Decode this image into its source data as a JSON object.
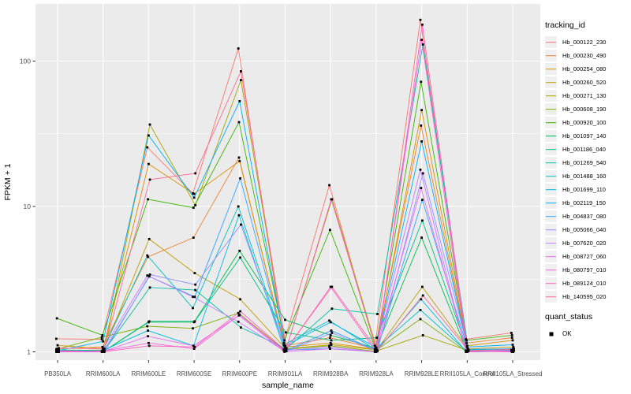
{
  "chart_data": {
    "type": "line",
    "title": "",
    "xlabel": "sample_name",
    "ylabel": "FPKM + 1",
    "y_scale": "log10",
    "yticks": [
      "1",
      "10",
      "100"
    ],
    "ytick_values": [
      1,
      10,
      100
    ],
    "y_minor_gridline_values": [
      3.1623,
      31.623
    ],
    "ylim_approx": [
      0.88,
      245
    ],
    "panel_bg": "#EBEBEB",
    "gridline_color": "#FFFFFF",
    "marker": "black-square",
    "legend_position": "right",
    "legend_title": "tracking_id",
    "legend2_title": "quant_status",
    "legend2_items": [
      {
        "label": "OK",
        "marker": "black-square"
      }
    ],
    "x_categories": [
      "PB350LA",
      "RRIM600LA",
      "RRIM600LE",
      "RRIM600SE",
      "RRIM600PE",
      "RRIM901LA",
      "RRIM928BA",
      "RRIM928LA",
      "RRIM928LE",
      "RRII105LA_Control",
      "RRII105LA_Stressed"
    ],
    "series": [
      {
        "name": "Hb_000122_230",
        "color": "#F8766D",
        "values": [
          1.23,
          1.22,
          25.5,
          12.3,
          122,
          1.15,
          14.0,
          1.1,
          192,
          1.22,
          1.35
        ]
      },
      {
        "name": "Hb_000230_490",
        "color": "#EA8331",
        "values": [
          1.05,
          1.08,
          4.5,
          6.1,
          21.7,
          1.1,
          1.25,
          1.05,
          36,
          1.15,
          1.25
        ]
      },
      {
        "name": "Hb_000254_080",
        "color": "#D89000",
        "values": [
          1.11,
          1.05,
          19.6,
          12.2,
          20.5,
          1.08,
          1.15,
          1.04,
          46,
          1.1,
          1.2
        ]
      },
      {
        "name": "Hb_000260_520",
        "color": "#C09B00",
        "values": [
          1.02,
          1.03,
          5.97,
          3.48,
          2.3,
          1.05,
          1.12,
          1.03,
          2.8,
          1.05,
          1.08
        ]
      },
      {
        "name": "Hb_000271_130",
        "color": "#A3A500",
        "values": [
          1.0,
          1.02,
          36.6,
          10.2,
          74,
          1.06,
          11.2,
          1.02,
          1.3,
          1.02,
          1.05
        ]
      },
      {
        "name": "Hb_000608_190",
        "color": "#7CAE00",
        "values": [
          1.04,
          1.26,
          1.5,
          1.45,
          1.85,
          1.04,
          1.1,
          1.01,
          1.68,
          1.01,
          1.03
        ]
      },
      {
        "name": "Hb_000920_100",
        "color": "#39B600",
        "values": [
          1.7,
          1.3,
          11.2,
          9.8,
          38,
          1.2,
          6.9,
          1.05,
          72,
          1.2,
          1.3
        ]
      },
      {
        "name": "Hb_001097_140",
        "color": "#00BB4E",
        "values": [
          1.01,
          1.0,
          1.6,
          1.6,
          4.95,
          1.66,
          1.3,
          1.06,
          6.1,
          1.0,
          1.02
        ]
      },
      {
        "name": "Hb_001186_040",
        "color": "#00BF7D",
        "values": [
          1.0,
          1.01,
          1.62,
          1.62,
          4.45,
          1.36,
          1.2,
          1.25,
          8.0,
          1.01,
          1.02
        ]
      },
      {
        "name": "Hb_001269_540",
        "color": "#00C1A3",
        "values": [
          1.03,
          1.02,
          2.77,
          2.66,
          1.47,
          1.05,
          1.98,
          1.82,
          130,
          1.03,
          1.04
        ]
      },
      {
        "name": "Hb_001488_160",
        "color": "#00BFC4",
        "values": [
          1.01,
          1.0,
          4.6,
          2.0,
          10.0,
          1.12,
          1.64,
          1.04,
          1.94,
          1.02,
          1.03
        ]
      },
      {
        "name": "Hb_001699_110",
        "color": "#00BAE0",
        "values": [
          1.0,
          1.02,
          1.4,
          1.1,
          8.7,
          1.03,
          1.05,
          1.0,
          2.3,
          1.0,
          1.01
        ]
      },
      {
        "name": "Hb_002119_150",
        "color": "#00B0F6",
        "values": [
          1.02,
          1.18,
          30.8,
          11.5,
          53,
          1.1,
          1.6,
          1.07,
          28,
          1.08,
          1.12
        ]
      },
      {
        "name": "Hb_004837_080",
        "color": "#35A2FF",
        "values": [
          1.01,
          1.01,
          3.3,
          2.39,
          15.6,
          1.02,
          1.4,
          1.02,
          11.1,
          1.04,
          1.05
        ]
      },
      {
        "name": "Hb_005066_040",
        "color": "#9590FF",
        "values": [
          1.0,
          1.0,
          3.4,
          2.9,
          7.5,
          1.01,
          1.35,
          1.01,
          16.9,
          1.02,
          1.02
        ]
      },
      {
        "name": "Hb_007620_020",
        "color": "#C77CFF",
        "values": [
          1.0,
          1.01,
          3.35,
          2.39,
          1.61,
          1.02,
          1.08,
          1.0,
          17.9,
          1.0,
          1.01
        ]
      },
      {
        "name": "Hb_008727_060",
        "color": "#E76BF3",
        "values": [
          1.0,
          1.0,
          1.28,
          1.1,
          1.78,
          1.0,
          1.05,
          1.0,
          13.4,
          1.01,
          1.0
        ]
      },
      {
        "name": "Hb_080797_010",
        "color": "#FA62DB",
        "values": [
          1.0,
          1.01,
          1.15,
          1.05,
          1.8,
          1.01,
          2.8,
          1.0,
          140,
          1.0,
          1.02
        ]
      },
      {
        "name": "Hb_089124_010",
        "color": "#FF62BC",
        "values": [
          1.02,
          1.0,
          1.1,
          1.08,
          1.9,
          1.02,
          11.2,
          1.01,
          178,
          1.01,
          1.0
        ]
      },
      {
        "name": "Hb_140595_020",
        "color": "#FF6A98",
        "values": [
          1.06,
          1.05,
          15.3,
          16.9,
          85,
          1.05,
          2.8,
          1.02,
          2.44,
          1.02,
          1.04
        ]
      }
    ]
  }
}
